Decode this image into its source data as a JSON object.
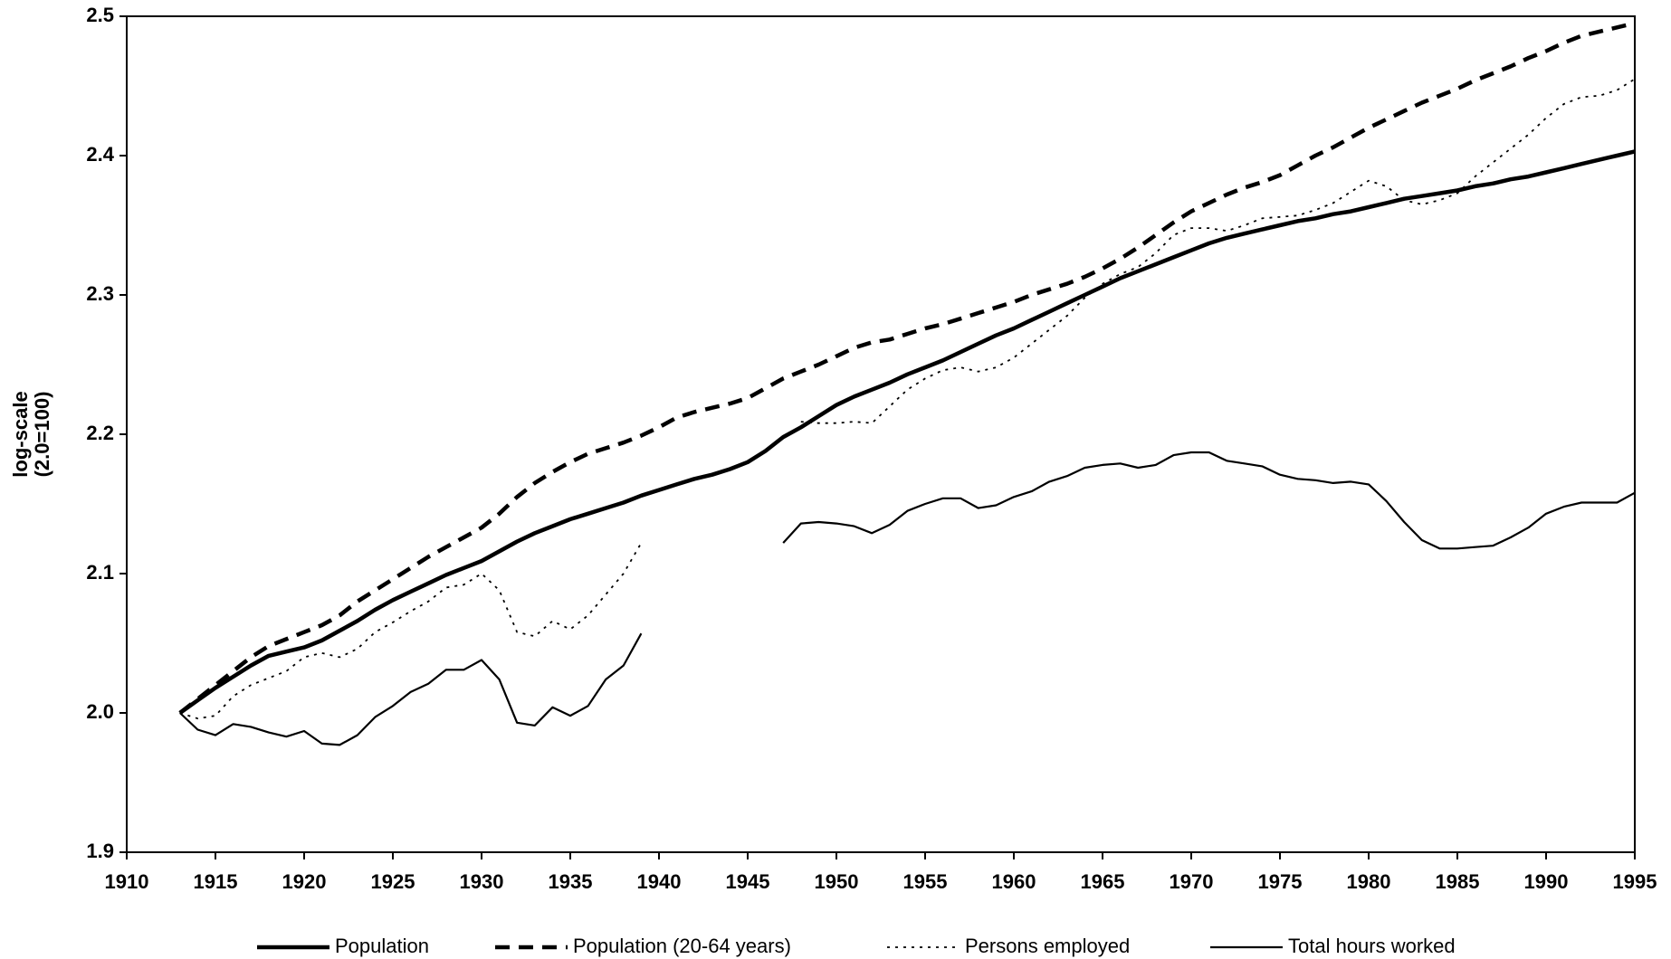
{
  "chart_data": {
    "type": "line",
    "y_label": [
      "log-scale",
      "(2.0=100)"
    ],
    "x": [
      1913,
      1914,
      1915,
      1916,
      1917,
      1918,
      1919,
      1920,
      1921,
      1922,
      1923,
      1924,
      1925,
      1926,
      1927,
      1928,
      1929,
      1930,
      1931,
      1932,
      1933,
      1934,
      1935,
      1936,
      1937,
      1938,
      1939,
      1940,
      1941,
      1942,
      1943,
      1944,
      1945,
      1946,
      1947,
      1948,
      1949,
      1950,
      1951,
      1952,
      1953,
      1954,
      1955,
      1956,
      1957,
      1958,
      1959,
      1960,
      1961,
      1962,
      1963,
      1964,
      1965,
      1966,
      1967,
      1968,
      1969,
      1970,
      1971,
      1972,
      1973,
      1974,
      1975,
      1976,
      1977,
      1978,
      1979,
      1980,
      1981,
      1982,
      1983,
      1984,
      1985,
      1986,
      1987,
      1988,
      1989,
      1990,
      1991,
      1992,
      1993,
      1994,
      1995
    ],
    "series": [
      {
        "name": "Population",
        "color": "#000000",
        "line_style": "solid",
        "line_width": 4.5,
        "values": [
          2.0,
          2.009,
          2.018,
          2.026,
          2.034,
          2.041,
          2.044,
          2.047,
          2.052,
          2.059,
          2.066,
          2.074,
          2.081,
          2.087,
          2.093,
          2.099,
          2.104,
          2.109,
          2.116,
          2.123,
          2.129,
          2.134,
          2.139,
          2.143,
          2.147,
          2.151,
          2.156,
          2.16,
          2.164,
          2.168,
          2.171,
          2.175,
          2.18,
          2.188,
          2.198,
          2.205,
          2.213,
          2.221,
          2.227,
          2.232,
          2.237,
          2.243,
          2.248,
          2.253,
          2.259,
          2.265,
          2.271,
          2.276,
          2.282,
          2.288,
          2.294,
          2.3,
          2.306,
          2.312,
          2.317,
          2.322,
          2.327,
          2.332,
          2.337,
          2.341,
          2.344,
          2.347,
          2.35,
          2.353,
          2.355,
          2.358,
          2.36,
          2.363,
          2.366,
          2.369,
          2.371,
          2.373,
          2.375,
          2.378,
          2.38,
          2.383,
          2.385,
          2.388,
          2.391,
          2.394,
          2.397,
          2.4,
          2.403
        ]
      },
      {
        "name": "Population (20-64 years)",
        "color": "#000000",
        "line_style": "dashed",
        "line_width": 4.5,
        "values": [
          2.0,
          2.01,
          2.02,
          2.03,
          2.04,
          2.048,
          2.053,
          2.058,
          2.063,
          2.07,
          2.08,
          2.088,
          2.096,
          2.104,
          2.112,
          2.119,
          2.126,
          2.133,
          2.143,
          2.155,
          2.165,
          2.173,
          2.18,
          2.186,
          2.19,
          2.194,
          2.199,
          2.205,
          2.212,
          2.216,
          2.219,
          2.222,
          2.226,
          2.233,
          2.24,
          2.245,
          2.25,
          2.256,
          2.262,
          2.266,
          2.268,
          2.272,
          2.276,
          2.279,
          2.283,
          2.287,
          2.291,
          2.295,
          2.3,
          2.304,
          2.308,
          2.313,
          2.319,
          2.326,
          2.334,
          2.343,
          2.352,
          2.36,
          2.366,
          2.372,
          2.377,
          2.381,
          2.386,
          2.393,
          2.4,
          2.406,
          2.413,
          2.42,
          2.426,
          2.432,
          2.438,
          2.443,
          2.448,
          2.454,
          2.459,
          2.464,
          2.47,
          2.475,
          2.481,
          2.486,
          2.489,
          2.492,
          2.495
        ]
      },
      {
        "name": "Persons employed",
        "color": "#000000",
        "line_style": "dotted",
        "line_width": 1.8,
        "values": [
          2.0,
          1.996,
          1.998,
          2.012,
          2.02,
          2.025,
          2.03,
          2.04,
          2.043,
          2.04,
          2.046,
          2.058,
          2.065,
          2.073,
          2.08,
          2.09,
          2.092,
          2.1,
          2.088,
          2.058,
          2.055,
          2.066,
          2.06,
          2.07,
          2.085,
          2.1,
          2.122,
          null,
          null,
          null,
          null,
          null,
          null,
          null,
          null,
          2.209,
          2.208,
          2.208,
          2.209,
          2.208,
          2.22,
          2.232,
          2.24,
          2.246,
          2.248,
          2.245,
          2.248,
          2.255,
          2.265,
          2.275,
          2.285,
          2.298,
          2.308,
          2.315,
          2.32,
          2.33,
          2.343,
          2.348,
          2.348,
          2.346,
          2.35,
          2.355,
          2.356,
          2.357,
          2.361,
          2.366,
          2.374,
          2.382,
          2.378,
          2.368,
          2.365,
          2.368,
          2.373,
          2.385,
          2.395,
          2.405,
          2.415,
          2.427,
          2.437,
          2.442,
          2.443,
          2.447,
          2.455
        ]
      },
      {
        "name": "Total hours worked",
        "color": "#000000",
        "line_style": "solid",
        "line_width": 2.2,
        "values": [
          2.0,
          1.988,
          1.984,
          1.992,
          1.99,
          1.986,
          1.983,
          1.987,
          1.978,
          1.977,
          1.984,
          1.997,
          2.005,
          2.015,
          2.021,
          2.031,
          2.031,
          2.038,
          2.024,
          1.993,
          1.991,
          2.004,
          1.998,
          2.005,
          2.024,
          2.034,
          2.057,
          null,
          null,
          null,
          null,
          null,
          null,
          null,
          2.122,
          2.136,
          2.137,
          2.136,
          2.134,
          2.129,
          2.135,
          2.145,
          2.15,
          2.154,
          2.154,
          2.147,
          2.149,
          2.155,
          2.159,
          2.166,
          2.17,
          2.176,
          2.178,
          2.179,
          2.176,
          2.178,
          2.185,
          2.187,
          2.187,
          2.181,
          2.179,
          2.177,
          2.171,
          2.168,
          2.167,
          2.165,
          2.166,
          2.164,
          2.152,
          2.137,
          2.124,
          2.118,
          2.118,
          2.119,
          2.12,
          2.126,
          2.133,
          2.143,
          2.148,
          2.151,
          2.151,
          2.151,
          2.158
        ]
      }
    ],
    "xlim": [
      1910,
      1995
    ],
    "xticks": [
      1910,
      1915,
      1920,
      1925,
      1930,
      1935,
      1940,
      1945,
      1950,
      1955,
      1960,
      1965,
      1970,
      1975,
      1980,
      1985,
      1990,
      1995
    ],
    "ylim": [
      1.9,
      2.5
    ],
    "yticks": [
      1.9,
      {
        "value": 2,
        "label": "2.0"
      },
      2.1,
      2.2,
      2.3,
      2.4,
      2.5
    ],
    "grid": false,
    "legend": "bottom"
  }
}
